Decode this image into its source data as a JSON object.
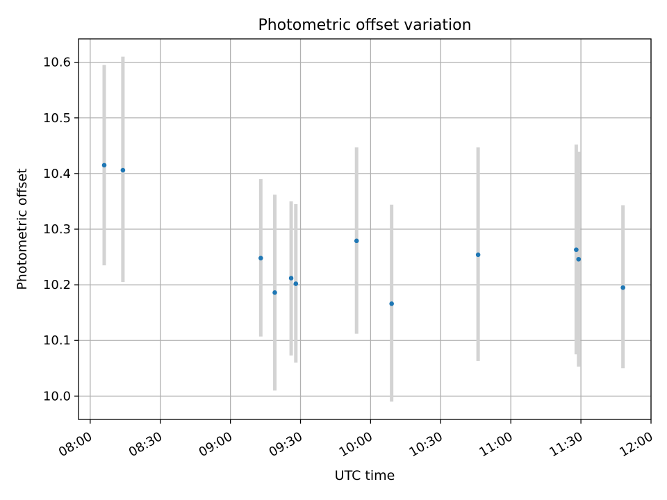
{
  "chart_data": {
    "type": "scatter",
    "title": "Photometric offset variation",
    "xlabel": "UTC time",
    "ylabel": "Photometric offset",
    "x_ticks": [
      "08:00",
      "08:30",
      "09:00",
      "09:30",
      "10:00",
      "10:30",
      "11:00",
      "11:30",
      "12:00"
    ],
    "xlim": [
      "07:55",
      "12:00"
    ],
    "y_ticks": [
      "10.0",
      "10.1",
      "10.2",
      "10.3",
      "10.4",
      "10.5",
      "10.6"
    ],
    "ylim": [
      9.958,
      10.642
    ],
    "grid": true,
    "legend": "none",
    "colors": {
      "point": "#1f77b4",
      "errorbar": "#d3d3d3",
      "grid": "#b0b0b0"
    },
    "points": [
      {
        "x": "08:06",
        "y": 10.415,
        "ylow": 10.235,
        "yhigh": 10.595
      },
      {
        "x": "08:14",
        "y": 10.406,
        "ylow": 10.205,
        "yhigh": 10.61
      },
      {
        "x": "09:13",
        "y": 10.248,
        "ylow": 10.107,
        "yhigh": 10.39
      },
      {
        "x": "09:19",
        "y": 10.186,
        "ylow": 10.01,
        "yhigh": 10.362
      },
      {
        "x": "09:26",
        "y": 10.212,
        "ylow": 10.073,
        "yhigh": 10.35
      },
      {
        "x": "09:28",
        "y": 10.202,
        "ylow": 10.06,
        "yhigh": 10.345
      },
      {
        "x": "09:54",
        "y": 10.279,
        "ylow": 10.112,
        "yhigh": 10.447
      },
      {
        "x": "10:09",
        "y": 10.166,
        "ylow": 9.99,
        "yhigh": 10.344
      },
      {
        "x": "10:46",
        "y": 10.254,
        "ylow": 10.063,
        "yhigh": 10.447
      },
      {
        "x": "11:28",
        "y": 10.263,
        "ylow": 10.075,
        "yhigh": 10.452
      },
      {
        "x": "11:29",
        "y": 10.246,
        "ylow": 10.053,
        "yhigh": 10.439
      },
      {
        "x": "11:48",
        "y": 10.195,
        "ylow": 10.05,
        "yhigh": 10.343
      }
    ]
  }
}
